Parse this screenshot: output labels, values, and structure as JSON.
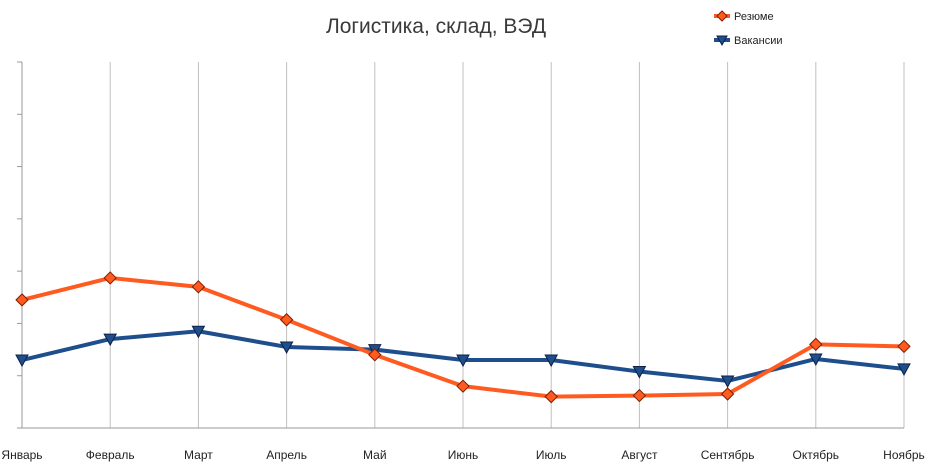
{
  "chart_data": {
    "type": "line",
    "title": "Логистика, склад, ВЭД",
    "xlabel": "",
    "ylabel": "",
    "categories": [
      "Январь",
      "Февраль",
      "Март",
      "Апрель",
      "Май",
      "Июнь",
      "Июль",
      "Август",
      "Сентябрь",
      "Октябрь",
      "Ноябрь"
    ],
    "ylim": [
      0,
      7
    ],
    "grid": true,
    "legend_position": "top-right",
    "series": [
      {
        "name": "Резюме",
        "color": "#ff5a1f",
        "marker": "diamond",
        "values": [
          2.45,
          2.87,
          2.7,
          2.07,
          1.4,
          0.8,
          0.6,
          0.62,
          0.65,
          1.6,
          1.56
        ]
      },
      {
        "name": "Вакансии",
        "color": "#1f4e8c",
        "marker": "triangle-down",
        "values": [
          1.3,
          1.7,
          1.85,
          1.55,
          1.5,
          1.3,
          1.3,
          1.08,
          0.9,
          1.32,
          1.13
        ]
      }
    ]
  }
}
